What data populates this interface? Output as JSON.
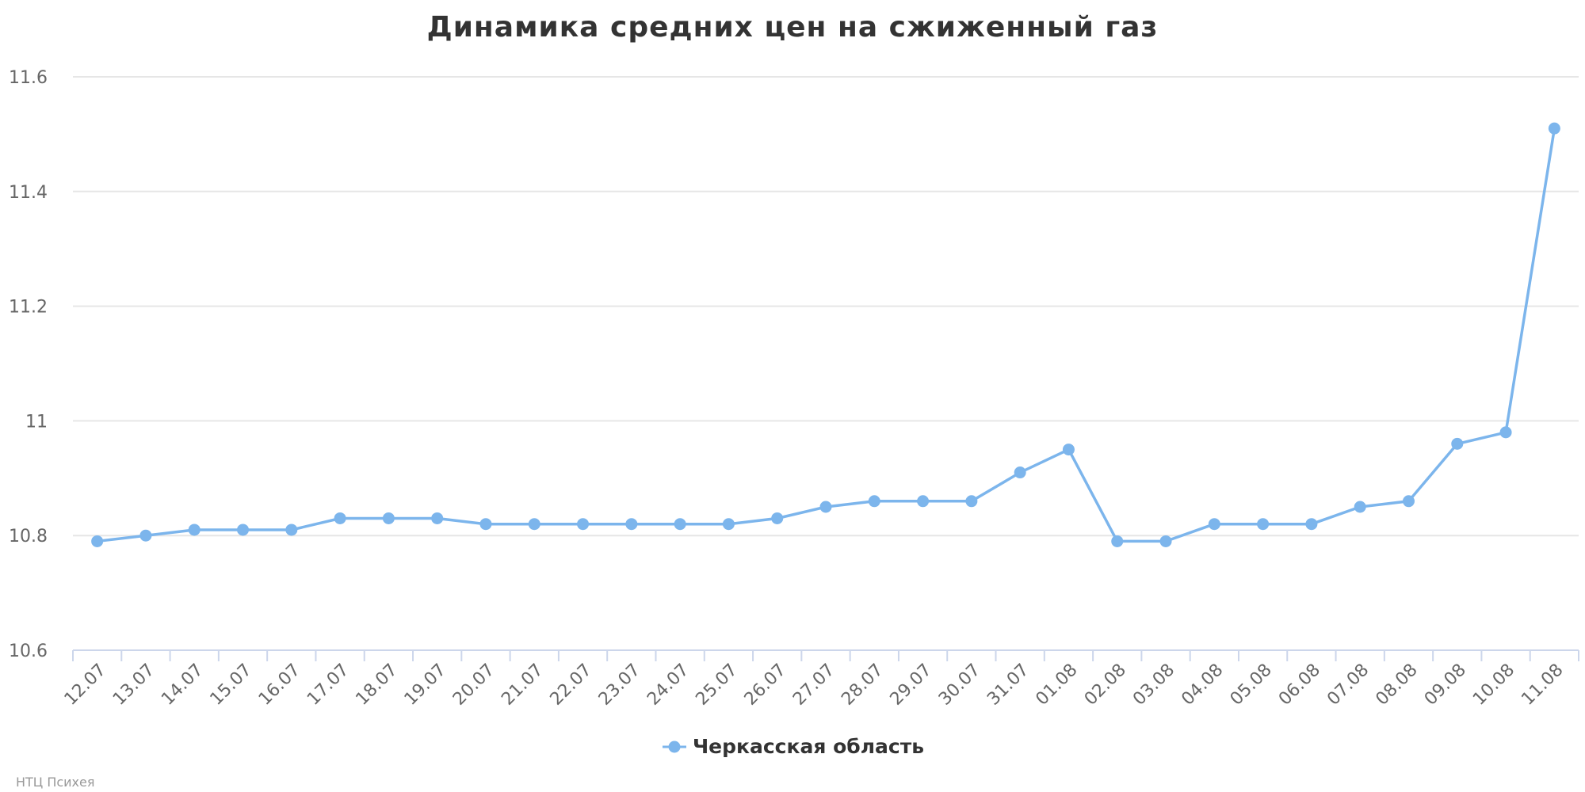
{
  "chart_data": {
    "type": "line",
    "title": "Динамика средних цен на сжиженный газ",
    "categories": [
      "12.07",
      "13.07",
      "14.07",
      "15.07",
      "16.07",
      "17.07",
      "18.07",
      "19.07",
      "20.07",
      "21.07",
      "22.07",
      "23.07",
      "24.07",
      "25.07",
      "26.07",
      "27.07",
      "28.07",
      "29.07",
      "30.07",
      "31.07",
      "01.08",
      "02.08",
      "03.08",
      "04.08",
      "05.08",
      "06.08",
      "07.08",
      "08.08",
      "09.08",
      "10.08",
      "11.08"
    ],
    "series": [
      {
        "name": "Черкасская область",
        "color": "#7cb5ec",
        "values": [
          10.79,
          10.8,
          10.81,
          10.81,
          10.81,
          10.83,
          10.83,
          10.83,
          10.82,
          10.82,
          10.82,
          10.82,
          10.82,
          10.82,
          10.83,
          10.85,
          10.86,
          10.86,
          10.86,
          10.91,
          10.95,
          10.79,
          10.79,
          10.82,
          10.82,
          10.82,
          10.85,
          10.86,
          10.96,
          10.98,
          11.51
        ]
      }
    ],
    "ylim": [
      10.6,
      11.6
    ],
    "yticks": [
      10.6,
      10.8,
      11,
      11.2,
      11.4,
      11.6
    ],
    "ytick_labels": [
      "10.6",
      "10.8",
      "11",
      "11.2",
      "11.4",
      "11.6"
    ],
    "grid": true,
    "legend": "bottom-center"
  },
  "credits": "НТЦ Психея"
}
